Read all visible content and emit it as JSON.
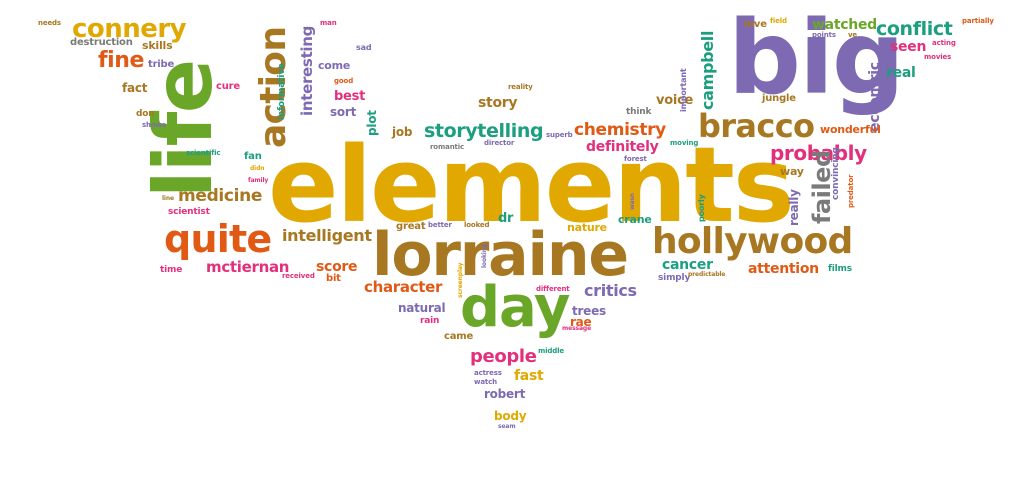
{
  "colors": {
    "gold": "#e0a800",
    "brown": "#a87722",
    "green": "#6aa628",
    "orange": "#e05a16",
    "purple": "#7d6ab2",
    "pink": "#e2307d",
    "teal": "#1c9e80",
    "gray": "#7a7a7a"
  },
  "words": [
    {
      "text": "elements",
      "color": "gold"
    },
    {
      "text": "big",
      "color": "purple"
    },
    {
      "text": "life",
      "color": "green"
    },
    {
      "text": "lorraine",
      "color": "brown"
    },
    {
      "text": "day",
      "color": "green"
    },
    {
      "text": "hollywood",
      "color": "brown"
    },
    {
      "text": "quite",
      "color": "orange"
    },
    {
      "text": "action",
      "color": "brown"
    },
    {
      "text": "bracco",
      "color": "brown"
    },
    {
      "text": "connery",
      "color": "gold"
    },
    {
      "text": "probably",
      "color": "pink"
    },
    {
      "text": "storytelling",
      "color": "teal"
    },
    {
      "text": "chemistry",
      "color": "orange"
    },
    {
      "text": "conflict",
      "color": "teal"
    },
    {
      "text": "failed",
      "color": "gray"
    },
    {
      "text": "campbell",
      "color": "teal"
    },
    {
      "text": "fine",
      "color": "orange"
    },
    {
      "text": "medicine",
      "color": "brown"
    },
    {
      "text": "intelligent",
      "color": "brown"
    },
    {
      "text": "mctiernan",
      "color": "pink"
    },
    {
      "text": "character",
      "color": "orange"
    },
    {
      "text": "critics",
      "color": "purple"
    },
    {
      "text": "people",
      "color": "pink"
    },
    {
      "text": "interesting",
      "color": "purple"
    },
    {
      "text": "eccentric",
      "color": "purple"
    },
    {
      "text": "cancer",
      "color": "teal"
    },
    {
      "text": "attention",
      "color": "orange"
    },
    {
      "text": "story",
      "color": "brown"
    },
    {
      "text": "definitely",
      "color": "pink"
    },
    {
      "text": "score",
      "color": "orange"
    },
    {
      "text": "watched",
      "color": "green"
    },
    {
      "text": "seen",
      "color": "pink"
    },
    {
      "text": "real",
      "color": "teal"
    },
    {
      "text": "wonderful",
      "color": "orange"
    },
    {
      "text": "voice",
      "color": "brown"
    },
    {
      "text": "fast",
      "color": "gold"
    },
    {
      "text": "robert",
      "color": "purple"
    },
    {
      "text": "body",
      "color": "gold"
    },
    {
      "text": "natural",
      "color": "purple"
    },
    {
      "text": "trees",
      "color": "purple"
    },
    {
      "text": "rae",
      "color": "orange"
    },
    {
      "text": "nature",
      "color": "gold"
    },
    {
      "text": "crane",
      "color": "teal"
    },
    {
      "text": "really",
      "color": "purple"
    },
    {
      "text": "job",
      "color": "brown"
    },
    {
      "text": "plot",
      "color": "teal"
    },
    {
      "text": "best",
      "color": "pink"
    },
    {
      "text": "sort",
      "color": "purple"
    },
    {
      "text": "informative",
      "color": "teal"
    },
    {
      "text": "come",
      "color": "purple"
    },
    {
      "text": "fact",
      "color": "brown"
    },
    {
      "text": "tribe",
      "color": "purple"
    },
    {
      "text": "skills",
      "color": "brown"
    },
    {
      "text": "destruction",
      "color": "gray"
    },
    {
      "text": "cure",
      "color": "pink"
    },
    {
      "text": "fan",
      "color": "teal"
    },
    {
      "text": "scientist",
      "color": "pink"
    },
    {
      "text": "time",
      "color": "pink"
    },
    {
      "text": "bit",
      "color": "orange"
    },
    {
      "text": "dr",
      "color": "teal"
    },
    {
      "text": "jungle",
      "color": "brown"
    },
    {
      "text": "love",
      "color": "brown"
    },
    {
      "text": "way",
      "color": "brown"
    },
    {
      "text": "films",
      "color": "teal"
    },
    {
      "text": "simply",
      "color": "purple"
    },
    {
      "text": "rain",
      "color": "pink"
    },
    {
      "text": "came",
      "color": "brown"
    },
    {
      "text": "think",
      "color": "gray"
    },
    {
      "text": "important",
      "color": "purple"
    },
    {
      "text": "convincing",
      "color": "purple"
    },
    {
      "text": "poorly",
      "color": "teal"
    },
    {
      "text": "needs",
      "color": "brown"
    },
    {
      "text": "man",
      "color": "pink"
    },
    {
      "text": "sad",
      "color": "purple"
    },
    {
      "text": "good",
      "color": "orange"
    },
    {
      "text": "partially",
      "color": "orange"
    },
    {
      "text": "field",
      "color": "gold"
    },
    {
      "text": "points",
      "color": "purple"
    },
    {
      "text": "ve",
      "color": "brown"
    },
    {
      "text": "acting",
      "color": "pink"
    },
    {
      "text": "movies",
      "color": "pink"
    },
    {
      "text": "don",
      "color": "brown"
    },
    {
      "text": "shows",
      "color": "purple"
    },
    {
      "text": "scientific",
      "color": "teal"
    },
    {
      "text": "didn",
      "color": "gold"
    },
    {
      "text": "family",
      "color": "pink"
    },
    {
      "text": "line",
      "color": "brown"
    },
    {
      "text": "received",
      "color": "pink"
    },
    {
      "text": "reality",
      "color": "brown"
    },
    {
      "text": "romantic",
      "color": "gray"
    },
    {
      "text": "director",
      "color": "purple"
    },
    {
      "text": "superb",
      "color": "purple"
    },
    {
      "text": "moving",
      "color": "teal"
    },
    {
      "text": "forest",
      "color": "purple"
    },
    {
      "text": "wasn",
      "color": "purple"
    },
    {
      "text": "great",
      "color": "brown"
    },
    {
      "text": "better",
      "color": "purple"
    },
    {
      "text": "looked",
      "color": "brown"
    },
    {
      "text": "looking",
      "color": "purple"
    },
    {
      "text": "different",
      "color": "pink"
    },
    {
      "text": "message",
      "color": "pink"
    },
    {
      "text": "middle",
      "color": "teal"
    },
    {
      "text": "actress",
      "color": "purple"
    },
    {
      "text": "watch",
      "color": "purple"
    },
    {
      "text": "seam",
      "color": "purple"
    },
    {
      "text": "predictable",
      "color": "brown"
    },
    {
      "text": "predator",
      "color": "orange"
    },
    {
      "text": "screenplay",
      "color": "gold"
    }
  ]
}
